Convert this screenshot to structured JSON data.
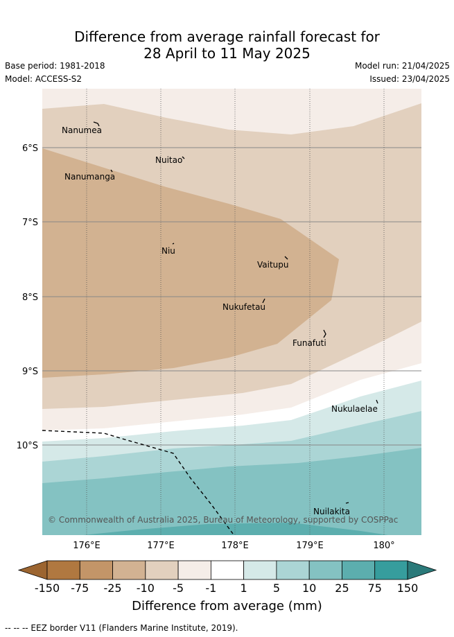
{
  "title": {
    "line1": "Difference from average rainfall forecast for",
    "line2": "28 April to 11 May 2025"
  },
  "meta": {
    "base_period": "Base period: 1981-2018",
    "model": "Model: ACCESS-S2",
    "model_run": "Model run: 21/04/2025",
    "issued": "Issued: 23/04/2025"
  },
  "map": {
    "lat_ticks": [
      "6°S",
      "7°S",
      "8°S",
      "9°S",
      "10°S"
    ],
    "lon_ticks": [
      "176°E",
      "177°E",
      "178°E",
      "179°E",
      "180°"
    ],
    "places": [
      "Nanumea",
      "Nuitao",
      "Nanumanga",
      "Niu",
      "Vaitupu",
      "Nukufetau",
      "Funafuti",
      "Nukulaelae",
      "Nuilakita"
    ],
    "copyright": "© Commonwealth of Australia 2025, Bureau of Meteorology, supported by COSPPac",
    "eez_line": "dashed"
  },
  "colorbar": {
    "ticks": [
      "-150",
      "-75",
      "-25",
      "-10",
      "-5",
      "-1",
      "1",
      "5",
      "10",
      "25",
      "75",
      "150"
    ],
    "colors": [
      "#9c6530",
      "#b07840",
      "#c39568",
      "#d2b292",
      "#e2d0be",
      "#f5ede8",
      "#ffffff",
      "#d5e9e8",
      "#abd5d5",
      "#84c2c2",
      "#5caeae",
      "#369d9d",
      "#2b7a7a"
    ],
    "label": "Difference from average (mm)"
  },
  "footer": "--  --  -- EEZ border V11 (Flanders Marine Institute, 2019)."
}
